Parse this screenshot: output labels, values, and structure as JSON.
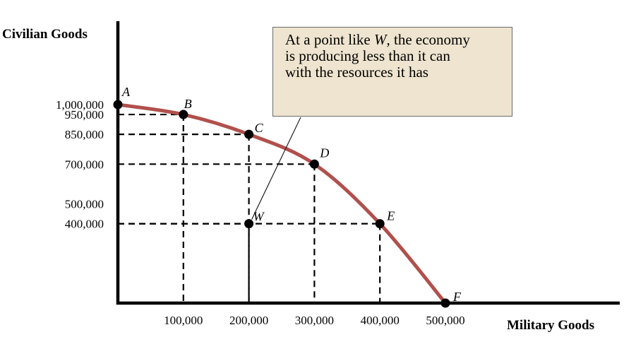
{
  "chart_data": {
    "type": "line",
    "xlabel": "Military Goods",
    "ylabel": "Civilian Goods",
    "x_ticks": [
      100000,
      200000,
      300000,
      400000,
      500000
    ],
    "x_tick_labels": [
      "100,000",
      "200,000",
      "300,000",
      "400,000",
      "500,000"
    ],
    "y_ticks": [
      1000000,
      950000,
      850000,
      700000,
      500000,
      400000
    ],
    "y_tick_labels": [
      "1,000,000",
      "950,000",
      "850,000",
      "700,000",
      "500,000",
      "400,000"
    ],
    "xlim": [
      0,
      560000
    ],
    "ylim": [
      0,
      1000000
    ],
    "curve_color": "#b0504c",
    "points": [
      {
        "label": "A",
        "x": 0,
        "y": 1000000
      },
      {
        "label": "B",
        "x": 100000,
        "y": 950000
      },
      {
        "label": "C",
        "x": 200000,
        "y": 850000
      },
      {
        "label": "D",
        "x": 300000,
        "y": 700000
      },
      {
        "label": "E",
        "x": 400000,
        "y": 400000
      },
      {
        "label": "F",
        "x": 500000,
        "y": 0
      }
    ],
    "inside_point": {
      "label": "W",
      "x": 200000,
      "y": 400000
    },
    "annotation": {
      "line1_before": "At a point like ",
      "line1_italic": "W",
      "line1_after": ", the economy",
      "line2": "is producing less than it can",
      "line3": "with the resources it has"
    }
  }
}
